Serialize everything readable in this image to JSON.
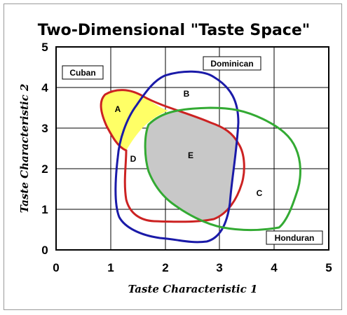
{
  "title": "Two-Dimensional \"Taste Space\"",
  "x_axis": {
    "label": "Taste Characteristic 1",
    "ticks": [
      "0",
      "1",
      "2",
      "3",
      "4",
      "5"
    ]
  },
  "y_axis": {
    "label": "Taste Characteristic 2",
    "ticks": [
      "0",
      "1",
      "2",
      "3",
      "4",
      "5"
    ]
  },
  "countries": {
    "cuban": "Cuban",
    "dominican": "Dominican",
    "honduran": "Honduran"
  },
  "regions": {
    "a": "A",
    "b": "B",
    "c": "C",
    "d": "D",
    "e": "E"
  },
  "colors": {
    "cuban_outline": "#cc2222",
    "dominican_outline": "#1a1aa8",
    "honduran_outline": "#33aa33",
    "region_a_fill": "#ffff66",
    "region_e_fill": "#c8c8c8"
  }
}
